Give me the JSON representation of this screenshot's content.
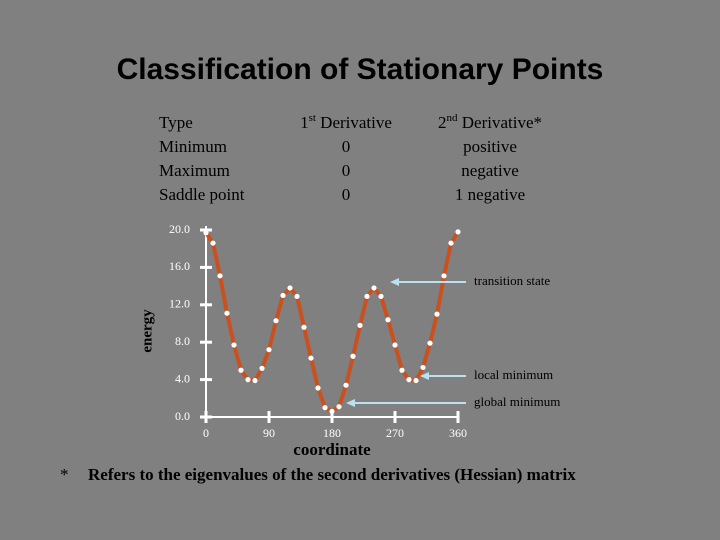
{
  "title": "Classification of Stationary Points",
  "table": {
    "columns": [
      [
        "Type"
      ],
      [
        "1",
        "st",
        " Derivative"
      ],
      [
        "2",
        "nd",
        " Derivative*"
      ]
    ],
    "rows": [
      [
        "Minimum",
        "0",
        "positive"
      ],
      [
        "Maximum",
        "0",
        "negative"
      ],
      [
        "Saddle point",
        "0",
        "1 negative"
      ]
    ]
  },
  "chart_data": {
    "type": "line",
    "xlabel": "coordinate",
    "ylabel": "energy",
    "x": [
      0,
      10,
      20,
      30,
      40,
      50,
      60,
      70,
      80,
      90,
      100,
      110,
      120,
      130,
      140,
      150,
      160,
      170,
      180,
      190,
      200,
      210,
      220,
      230,
      240,
      250,
      260,
      270,
      280,
      290,
      300,
      310,
      320,
      330,
      340,
      350,
      360
    ],
    "values": [
      19.7,
      18.6,
      15.1,
      11.1,
      7.7,
      5.0,
      4.0,
      3.9,
      5.2,
      7.2,
      10.3,
      13.0,
      13.8,
      12.9,
      9.6,
      6.3,
      3.1,
      1.0,
      0.6,
      1.1,
      3.4,
      6.5,
      9.8,
      12.9,
      13.8,
      12.9,
      10.4,
      7.7,
      5.0,
      4.0,
      3.9,
      5.3,
      7.9,
      11.0,
      15.1,
      18.6,
      19.8
    ],
    "color": "#c9511f",
    "xlim": [
      0,
      360
    ],
    "ylim": [
      0,
      20
    ],
    "xticks": [
      0,
      90,
      180,
      270,
      360
    ],
    "yticks": [
      {
        "value": 0,
        "label": "0.0"
      },
      {
        "value": 4,
        "label": "4.0"
      },
      {
        "value": 8,
        "label": "8.0"
      },
      {
        "value": 12,
        "label": "12.0"
      },
      {
        "value": 16,
        "label": "16.0"
      },
      {
        "value": 20,
        "label": "20.0"
      }
    ],
    "annotations": [
      "transition state",
      "local minimum",
      "global minimum"
    ]
  },
  "footnote": {
    "marker": "*",
    "text": "Refers to the eigenvalues of the second derivatives (Hessian) matrix"
  }
}
